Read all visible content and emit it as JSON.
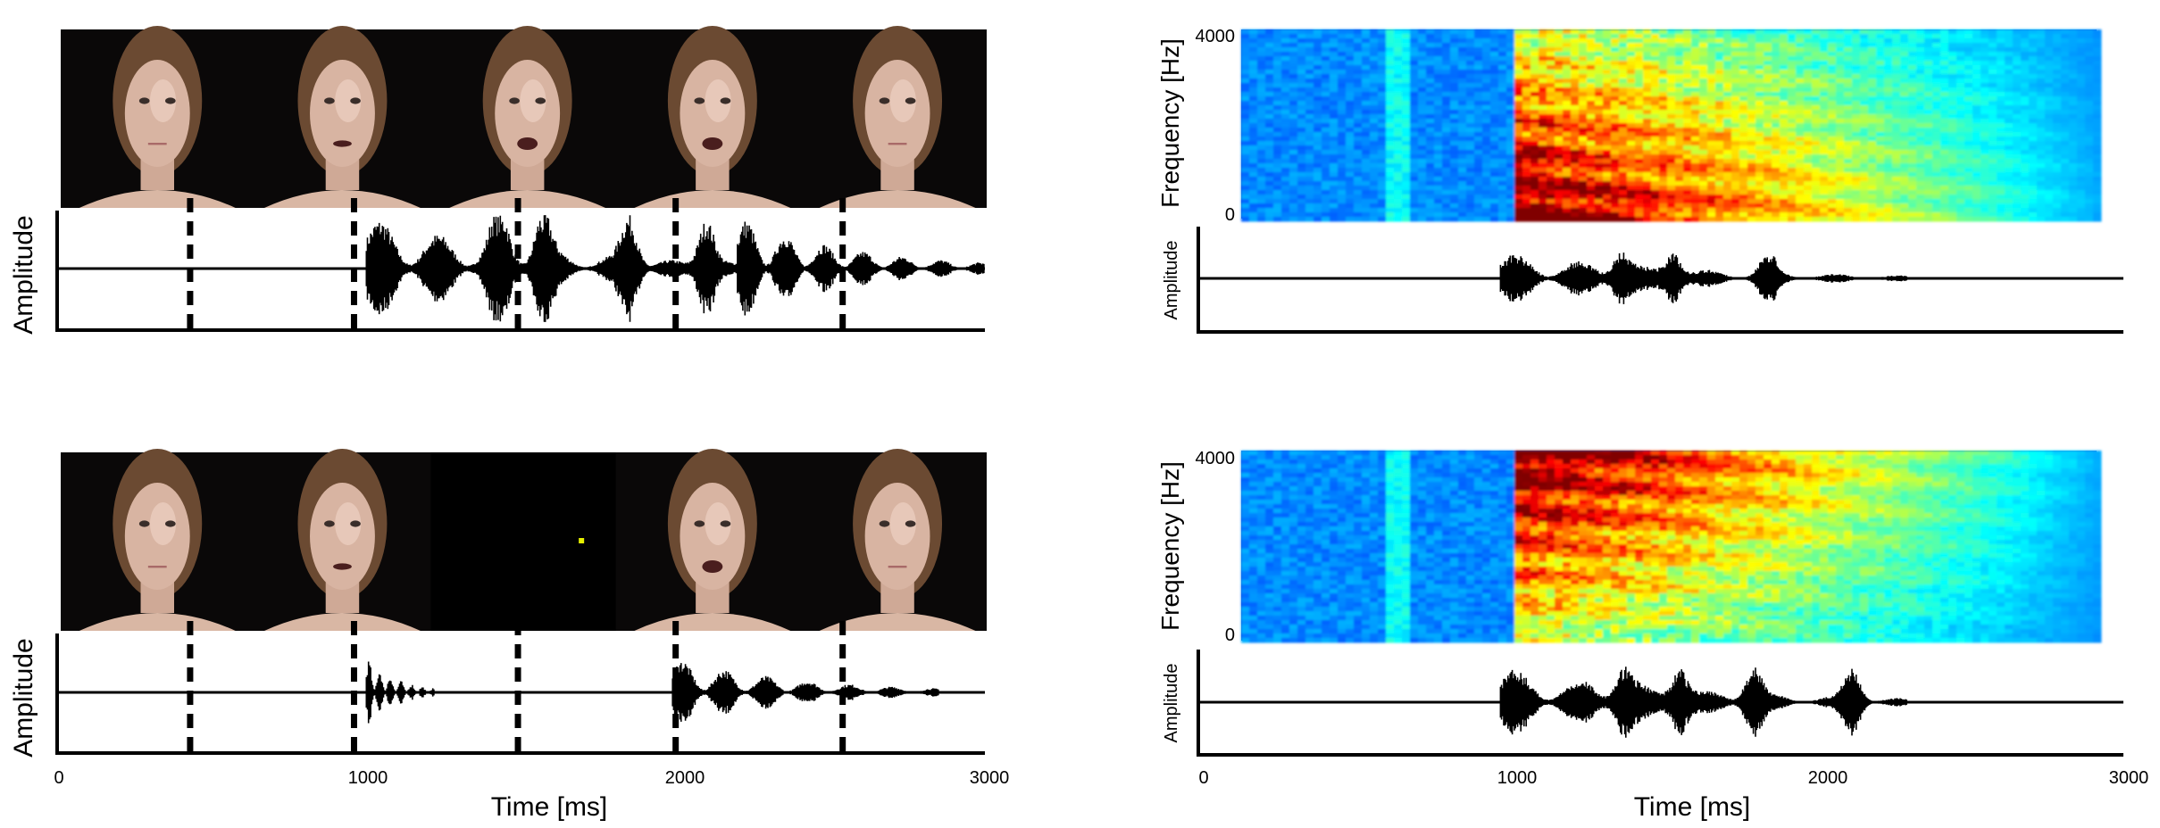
{
  "panels": {
    "top_left": {
      "ylabel": "Amplitude"
    },
    "bottom_left": {
      "ylabel": "Amplitude",
      "xlabel": "Time [ms]",
      "x_ticks": [
        "0",
        "1000",
        "2000",
        "3000"
      ]
    },
    "top_right": {
      "spec_ylabel": "Frequency [Hz]",
      "spec_ticks": [
        "4000",
        "0"
      ],
      "wave_ylabel": "Amplitude"
    },
    "bottom_right": {
      "spec_ylabel": "Frequency [Hz]",
      "spec_ticks": [
        "4000",
        "0"
      ],
      "wave_ylabel": "Amplitude",
      "xlabel": "Time [ms]",
      "x_ticks": [
        "0",
        "1000",
        "2000",
        "3000"
      ]
    }
  },
  "chart_data": [
    {
      "type": "line",
      "panel": "top_left",
      "content": "video frames above audio waveform (intact)",
      "xlim": [
        0,
        3000
      ],
      "frame_markers_ms": [
        430,
        960,
        1490,
        2000,
        2540
      ],
      "frames": [
        {
          "kind": "face",
          "mouth": "closed"
        },
        {
          "kind": "face",
          "mouth": "slightly-open"
        },
        {
          "kind": "face",
          "mouth": "open"
        },
        {
          "kind": "face",
          "mouth": "open"
        },
        {
          "kind": "face",
          "mouth": "closed"
        }
      ],
      "waveform_segments_ms": [
        [
          1000,
          2200
        ],
        [
          2200,
          3000
        ]
      ],
      "peaks_ms": [
        1430,
        1570,
        1850,
        2100
      ]
    },
    {
      "type": "line",
      "panel": "bottom_left",
      "content": "video frames above audio waveform (middle segment removed, fixation dot)",
      "xlim": [
        0,
        3000
      ],
      "frame_markers_ms": [
        430,
        960,
        1490,
        2000,
        2540
      ],
      "frames": [
        {
          "kind": "face",
          "mouth": "closed"
        },
        {
          "kind": "face",
          "mouth": "slightly-open"
        },
        {
          "kind": "blank",
          "dot_color": "#e6f000"
        },
        {
          "kind": "face",
          "mouth": "open"
        },
        {
          "kind": "face",
          "mouth": "closed"
        }
      ],
      "waveform_segments_ms": [
        [
          1000,
          1220
        ],
        [
          1990,
          2850
        ]
      ]
    },
    {
      "type": "heatmap",
      "panel": "top_right",
      "content": "spectrogram and waveform",
      "xlim": [
        0,
        3000
      ],
      "ylim_hz": [
        0,
        4000
      ],
      "speech_onset_ms": 960,
      "speech_offset_ms": 2900,
      "energy_emphasis": "low-frequency",
      "waveform_segments_ms": [
        [
          980,
          2300
        ]
      ]
    },
    {
      "type": "heatmap",
      "panel": "bottom_right",
      "content": "spectrogram and waveform",
      "xlim": [
        0,
        3000
      ],
      "ylim_hz": [
        0,
        4000
      ],
      "speech_onset_ms": 960,
      "speech_offset_ms": 2900,
      "energy_emphasis": "high-frequency",
      "waveform_segments_ms": [
        [
          980,
          2300
        ]
      ]
    }
  ]
}
